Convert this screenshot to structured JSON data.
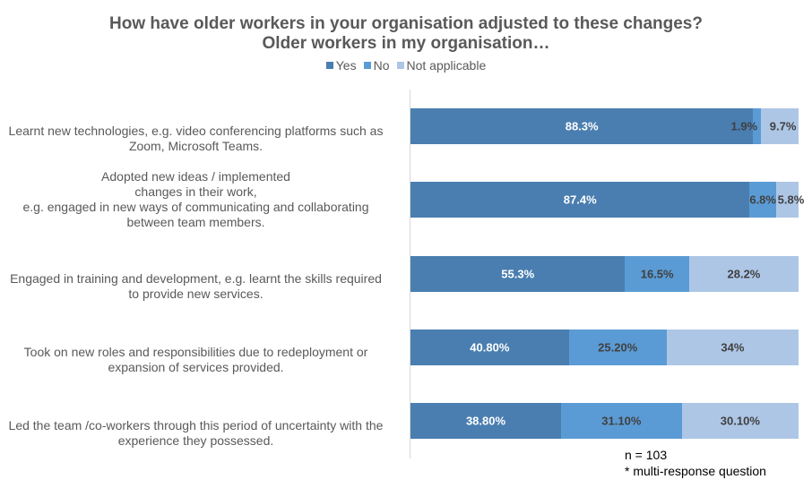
{
  "chart_data": {
    "type": "bar",
    "orientation": "horizontal",
    "stacked": true,
    "title": "How have older workers in your organisation adjusted to these changes?",
    "subtitle": "Older workers in my organisation…",
    "legend_position": "top",
    "xlim": [
      0,
      100
    ],
    "grid": false,
    "categories": [
      "Learnt new technologies, e.g. video conferencing platforms such as\nZoom, Microsoft Teams.",
      "Adopted new ideas / implemented\nchanges in their work,\ne.g. engaged in new ways of communicating and collaborating\nbetween team members.",
      "Engaged in training and development,  e.g. learnt the skills required\nto provide new services.",
      "Took on new roles and responsibilities due to redeployment or\nexpansion of services provided.",
      "Led the team /co-workers through this period of uncertainty with the\nexperience they possessed."
    ],
    "series": [
      {
        "name": "Yes",
        "color": "#4a7eb0",
        "values": [
          88.3,
          87.4,
          55.3,
          40.8,
          38.8
        ],
        "labels": [
          "88.3%",
          "87.4%",
          "55.3%",
          "40.80%",
          "38.80%"
        ]
      },
      {
        "name": "No",
        "color": "#5b9bd5",
        "values": [
          1.9,
          6.8,
          16.5,
          25.2,
          31.1
        ],
        "labels": [
          "1.9%",
          "6.8%",
          "16.5%",
          "25.20%",
          "31.10%"
        ]
      },
      {
        "name": "Not applicable",
        "color": "#adc6e6",
        "values": [
          9.7,
          5.8,
          28.2,
          34,
          30.1
        ],
        "labels": [
          "9.7%",
          "5.8%",
          "28.2%",
          "34%",
          "30.10%"
        ]
      }
    ],
    "annotations": [
      "n = 103",
      "* multi-response question"
    ]
  }
}
